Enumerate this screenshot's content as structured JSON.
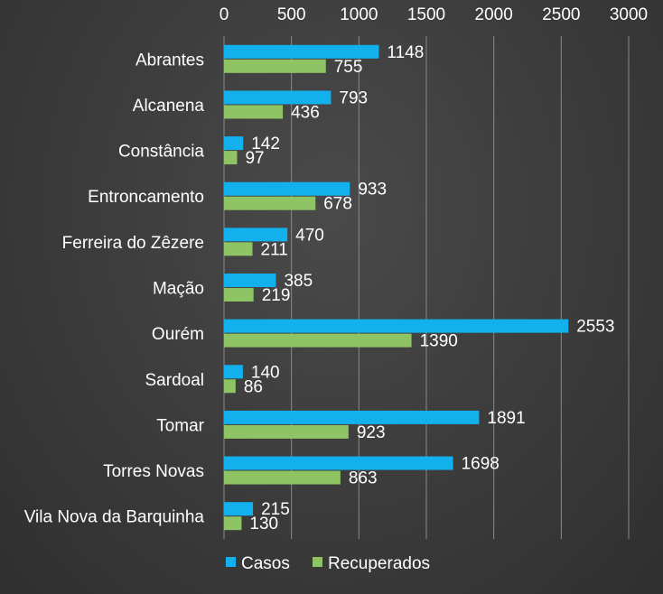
{
  "chart_data": {
    "type": "bar",
    "orientation": "horizontal",
    "categories": [
      "Abrantes",
      "Alcanena",
      "Constância",
      "Entroncamento",
      "Ferreira do Zêzere",
      "Mação",
      "Ourém",
      "Sardoal",
      "Tomar",
      "Torres Novas",
      "Vila Nova da Barquinha"
    ],
    "series": [
      {
        "name": "Casos",
        "color": "#12b0ec",
        "values": [
          1148,
          793,
          142,
          933,
          470,
          385,
          2553,
          140,
          1891,
          1698,
          215
        ]
      },
      {
        "name": "Recuperados",
        "color": "#8fc465",
        "values": [
          755,
          436,
          97,
          678,
          211,
          219,
          1390,
          86,
          923,
          863,
          130
        ]
      }
    ],
    "xlim": [
      0,
      3000
    ],
    "xticks": [
      0,
      500,
      1000,
      1500,
      2000,
      2500,
      3000
    ],
    "axis_position": "top",
    "grid": true,
    "legend_position": "bottom",
    "title": "",
    "xlabel": "",
    "ylabel": ""
  }
}
